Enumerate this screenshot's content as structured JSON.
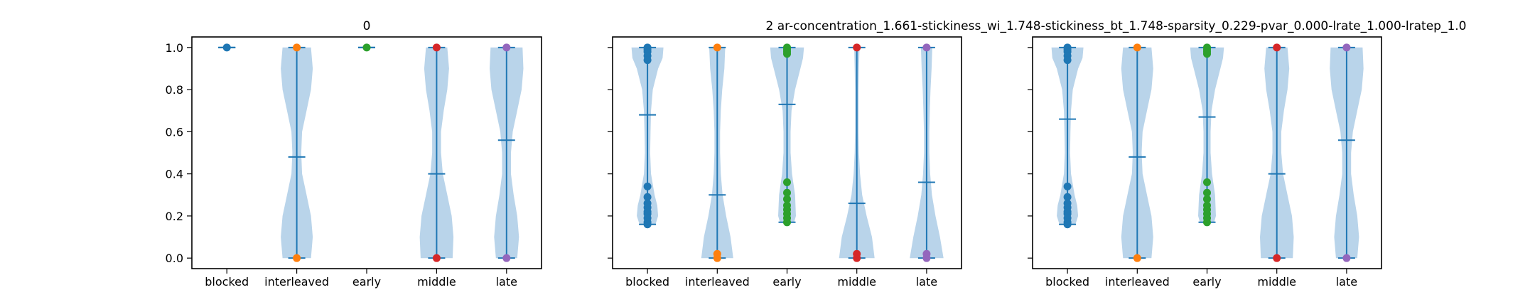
{
  "colors": {
    "body": "#1f77b4",
    "violin_fill": "#b9d4ea",
    "point_colors": {
      "blocked": "#1f77b4",
      "interleaved": "#ff7f0e",
      "early": "#2ca02c",
      "middle": "#d62728",
      "late": "#9467bd"
    }
  },
  "chart_data": [
    {
      "type": "violin",
      "title": "0",
      "categories": [
        "blocked",
        "interleaved",
        "early",
        "middle",
        "late"
      ],
      "ylim": [
        -0.05,
        1.05
      ],
      "yticks": [
        "0.0",
        "0.2",
        "0.4",
        "0.6",
        "0.8",
        "1.0"
      ],
      "show_ytick_labels": true,
      "violins": [
        {
          "category": "blocked",
          "min": 1.0,
          "max": 1.0,
          "mean": 1.0,
          "points": [
            1.0
          ],
          "shape": []
        },
        {
          "category": "interleaved",
          "min": 0.0,
          "max": 1.0,
          "mean": 0.48,
          "points": [
            0.0,
            1.0
          ],
          "shape": [
            [
              0.0,
              0.8
            ],
            [
              0.1,
              0.9
            ],
            [
              0.2,
              0.8
            ],
            [
              0.3,
              0.55
            ],
            [
              0.4,
              0.3
            ],
            [
              0.5,
              0.25
            ],
            [
              0.6,
              0.3
            ],
            [
              0.7,
              0.55
            ],
            [
              0.8,
              0.8
            ],
            [
              0.9,
              0.9
            ],
            [
              1.0,
              0.8
            ]
          ]
        },
        {
          "category": "early",
          "min": 1.0,
          "max": 1.0,
          "mean": 1.0,
          "points": [
            1.0
          ],
          "shape": []
        },
        {
          "category": "middle",
          "min": 0.0,
          "max": 1.0,
          "mean": 0.4,
          "points": [
            0.0,
            1.0
          ],
          "shape": [
            [
              0.0,
              0.9
            ],
            [
              0.1,
              0.95
            ],
            [
              0.2,
              0.85
            ],
            [
              0.3,
              0.6
            ],
            [
              0.4,
              0.35
            ],
            [
              0.5,
              0.25
            ],
            [
              0.6,
              0.25
            ],
            [
              0.7,
              0.4
            ],
            [
              0.8,
              0.6
            ],
            [
              0.9,
              0.7
            ],
            [
              1.0,
              0.6
            ]
          ]
        },
        {
          "category": "late",
          "min": 0.0,
          "max": 1.0,
          "mean": 0.56,
          "points": [
            0.0,
            1.0
          ],
          "shape": [
            [
              0.0,
              0.6
            ],
            [
              0.1,
              0.7
            ],
            [
              0.2,
              0.6
            ],
            [
              0.3,
              0.4
            ],
            [
              0.4,
              0.25
            ],
            [
              0.5,
              0.25
            ],
            [
              0.6,
              0.35
            ],
            [
              0.7,
              0.6
            ],
            [
              0.8,
              0.85
            ],
            [
              0.9,
              0.95
            ],
            [
              1.0,
              0.9
            ]
          ]
        }
      ]
    },
    {
      "type": "violin",
      "title": "2    ar-concentration_1.661-stickiness_wi_1.748-stickiness_bt_1.748-sparsity_0.229-pvar_0.000-lrate_1.000-lratep_1.0",
      "categories": [
        "blocked",
        "interleaved",
        "early",
        "middle",
        "late"
      ],
      "ylim": [
        -0.05,
        1.05
      ],
      "yticks": [
        "0.0",
        "0.2",
        "0.4",
        "0.6",
        "0.8",
        "1.0"
      ],
      "show_ytick_labels": false,
      "violins": [
        {
          "category": "blocked",
          "min": 0.16,
          "max": 1.0,
          "mean": 0.68,
          "points": [
            1.0,
            0.99,
            0.98,
            0.96,
            0.94,
            0.34,
            0.29,
            0.26,
            0.24,
            0.22,
            0.21,
            0.19,
            0.17,
            0.16
          ],
          "shape": [
            [
              0.16,
              0.45
            ],
            [
              0.2,
              0.6
            ],
            [
              0.25,
              0.55
            ],
            [
              0.3,
              0.4
            ],
            [
              0.4,
              0.2
            ],
            [
              0.5,
              0.15
            ],
            [
              0.6,
              0.17
            ],
            [
              0.7,
              0.2
            ],
            [
              0.8,
              0.3
            ],
            [
              0.9,
              0.6
            ],
            [
              0.95,
              0.85
            ],
            [
              1.0,
              0.9
            ]
          ]
        },
        {
          "category": "interleaved",
          "min": 0.0,
          "max": 1.0,
          "mean": 0.3,
          "points": [
            0.0,
            0.02,
            1.0
          ],
          "shape": [
            [
              0.0,
              0.9
            ],
            [
              0.1,
              0.75
            ],
            [
              0.2,
              0.5
            ],
            [
              0.3,
              0.3
            ],
            [
              0.4,
              0.2
            ],
            [
              0.5,
              0.16
            ],
            [
              0.6,
              0.16
            ],
            [
              0.7,
              0.2
            ],
            [
              0.8,
              0.28
            ],
            [
              0.9,
              0.4
            ],
            [
              1.0,
              0.45
            ]
          ]
        },
        {
          "category": "early",
          "min": 0.17,
          "max": 1.0,
          "mean": 0.73,
          "points": [
            1.0,
            0.99,
            0.98,
            0.97,
            0.36,
            0.31,
            0.28,
            0.25,
            0.23,
            0.21,
            0.19,
            0.17
          ],
          "shape": [
            [
              0.17,
              0.4
            ],
            [
              0.2,
              0.5
            ],
            [
              0.3,
              0.45
            ],
            [
              0.4,
              0.28
            ],
            [
              0.5,
              0.2
            ],
            [
              0.6,
              0.2
            ],
            [
              0.7,
              0.25
            ],
            [
              0.8,
              0.45
            ],
            [
              0.9,
              0.75
            ],
            [
              0.95,
              0.9
            ],
            [
              1.0,
              0.95
            ]
          ]
        },
        {
          "category": "middle",
          "min": 0.0,
          "max": 1.0,
          "mean": 0.26,
          "points": [
            0.0,
            0.02,
            1.0
          ],
          "shape": [
            [
              0.0,
              1.0
            ],
            [
              0.1,
              0.85
            ],
            [
              0.2,
              0.55
            ],
            [
              0.3,
              0.3
            ],
            [
              0.4,
              0.18
            ],
            [
              0.5,
              0.12
            ],
            [
              0.6,
              0.1
            ],
            [
              0.7,
              0.1
            ],
            [
              0.8,
              0.1
            ],
            [
              0.9,
              0.12
            ],
            [
              1.0,
              0.15
            ]
          ]
        },
        {
          "category": "late",
          "min": 0.0,
          "max": 1.0,
          "mean": 0.36,
          "points": [
            0.0,
            0.02,
            1.0
          ],
          "shape": [
            [
              0.0,
              0.95
            ],
            [
              0.1,
              0.75
            ],
            [
              0.2,
              0.5
            ],
            [
              0.3,
              0.3
            ],
            [
              0.4,
              0.2
            ],
            [
              0.5,
              0.15
            ],
            [
              0.6,
              0.15
            ],
            [
              0.7,
              0.18
            ],
            [
              0.8,
              0.22
            ],
            [
              0.9,
              0.28
            ],
            [
              1.0,
              0.32
            ]
          ]
        }
      ]
    },
    {
      "type": "violin",
      "title": "",
      "categories": [
        "blocked",
        "interleaved",
        "early",
        "middle",
        "late"
      ],
      "ylim": [
        -0.05,
        1.05
      ],
      "yticks": [
        "0.0",
        "0.2",
        "0.4",
        "0.6",
        "0.8",
        "1.0"
      ],
      "show_ytick_labels": false,
      "violins": [
        {
          "category": "blocked",
          "min": 0.16,
          "max": 1.0,
          "mean": 0.66,
          "points": [
            1.0,
            0.99,
            0.98,
            0.96,
            0.94,
            0.34,
            0.29,
            0.26,
            0.24,
            0.22,
            0.21,
            0.19,
            0.17,
            0.16
          ],
          "shape": [
            [
              0.16,
              0.45
            ],
            [
              0.2,
              0.6
            ],
            [
              0.25,
              0.55
            ],
            [
              0.3,
              0.4
            ],
            [
              0.4,
              0.2
            ],
            [
              0.5,
              0.15
            ],
            [
              0.6,
              0.17
            ],
            [
              0.7,
              0.2
            ],
            [
              0.8,
              0.3
            ],
            [
              0.9,
              0.6
            ],
            [
              0.95,
              0.85
            ],
            [
              1.0,
              0.9
            ]
          ]
        },
        {
          "category": "interleaved",
          "min": 0.0,
          "max": 1.0,
          "mean": 0.48,
          "points": [
            0.0,
            1.0
          ],
          "shape": [
            [
              0.0,
              0.8
            ],
            [
              0.1,
              0.9
            ],
            [
              0.2,
              0.8
            ],
            [
              0.3,
              0.55
            ],
            [
              0.4,
              0.3
            ],
            [
              0.5,
              0.25
            ],
            [
              0.6,
              0.3
            ],
            [
              0.7,
              0.55
            ],
            [
              0.8,
              0.8
            ],
            [
              0.9,
              0.9
            ],
            [
              1.0,
              0.8
            ]
          ]
        },
        {
          "category": "early",
          "min": 0.17,
          "max": 1.0,
          "mean": 0.67,
          "points": [
            1.0,
            0.99,
            0.98,
            0.97,
            0.36,
            0.31,
            0.28,
            0.25,
            0.23,
            0.21,
            0.19,
            0.17
          ],
          "shape": [
            [
              0.17,
              0.4
            ],
            [
              0.2,
              0.5
            ],
            [
              0.3,
              0.45
            ],
            [
              0.4,
              0.28
            ],
            [
              0.5,
              0.2
            ],
            [
              0.6,
              0.2
            ],
            [
              0.7,
              0.25
            ],
            [
              0.8,
              0.45
            ],
            [
              0.9,
              0.75
            ],
            [
              0.95,
              0.9
            ],
            [
              1.0,
              0.95
            ]
          ]
        },
        {
          "category": "middle",
          "min": 0.0,
          "max": 1.0,
          "mean": 0.4,
          "points": [
            0.0,
            1.0
          ],
          "shape": [
            [
              0.0,
              0.9
            ],
            [
              0.1,
              0.95
            ],
            [
              0.2,
              0.85
            ],
            [
              0.3,
              0.6
            ],
            [
              0.4,
              0.35
            ],
            [
              0.5,
              0.25
            ],
            [
              0.6,
              0.25
            ],
            [
              0.7,
              0.4
            ],
            [
              0.8,
              0.6
            ],
            [
              0.9,
              0.7
            ],
            [
              1.0,
              0.6
            ]
          ]
        },
        {
          "category": "late",
          "min": 0.0,
          "max": 1.0,
          "mean": 0.56,
          "points": [
            0.0,
            1.0
          ],
          "shape": [
            [
              0.0,
              0.6
            ],
            [
              0.1,
              0.7
            ],
            [
              0.2,
              0.6
            ],
            [
              0.3,
              0.4
            ],
            [
              0.4,
              0.25
            ],
            [
              0.5,
              0.25
            ],
            [
              0.6,
              0.35
            ],
            [
              0.7,
              0.6
            ],
            [
              0.8,
              0.85
            ],
            [
              0.9,
              0.95
            ],
            [
              1.0,
              0.9
            ]
          ]
        }
      ]
    }
  ]
}
